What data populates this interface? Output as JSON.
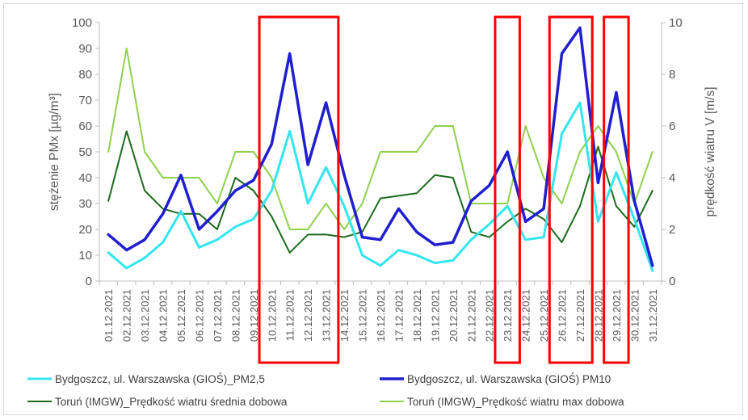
{
  "chart_data": {
    "type": "line",
    "x": [
      "01.12.2021",
      "02.12.2021",
      "03.12.2021",
      "04.12.2021",
      "05.12.2021",
      "06.12.2021",
      "07.12.2021",
      "08.12.2021",
      "09.12.2021",
      "10.12.2021",
      "11.12.2021",
      "12.12.2021",
      "13.12.2021",
      "14.12.2021",
      "15.12.2021",
      "16.12.2021",
      "17.12.2021",
      "18.12.2021",
      "19.12.2021",
      "20.12.2021",
      "21.12.2021",
      "22.12.2021",
      "23.12.2021",
      "24.12.2021",
      "25.12.2021",
      "26.12.2021",
      "27.12.2021",
      "28.12.2021",
      "29.12.2021",
      "30.12.2021",
      "31.12.2021"
    ],
    "y_left": {
      "label": "stężenie PMx [µg/m³]",
      "range": [
        0,
        100
      ],
      "ticks": [
        0,
        10,
        20,
        30,
        40,
        50,
        60,
        70,
        80,
        90,
        100
      ]
    },
    "y_right": {
      "label": "prędkość wiatru V [m/s]",
      "range": [
        0,
        10
      ],
      "ticks": [
        0,
        2,
        4,
        6,
        8,
        10
      ]
    },
    "series": [
      {
        "name": "Bydgoszcz, ul. Warszawska (GIOŚ)_PM2,5",
        "axis": "left",
        "color": "#33e6ee",
        "width": 3,
        "values": [
          11,
          5,
          9,
          15,
          27,
          13,
          16,
          21,
          24,
          35,
          58,
          30,
          44,
          29,
          10,
          6,
          12,
          10,
          7,
          8,
          16,
          22,
          29,
          16,
          17,
          57,
          69,
          23,
          42,
          24,
          4
        ]
      },
      {
        "name": "Bydgoszcz, ul. Warszawska (GIOŚ) PM10",
        "axis": "left",
        "color": "#1f1fd0",
        "width": 3.5,
        "values": [
          18,
          12,
          16,
          26,
          41,
          20,
          27,
          35,
          39,
          53,
          88,
          45,
          69,
          41,
          17,
          16,
          28,
          19,
          14,
          15,
          31,
          37,
          50,
          23,
          28,
          88,
          98,
          38,
          73,
          31,
          6
        ]
      },
      {
        "name": "Toruń (IMGW)_Prędkość wiatru średnia dobowa",
        "axis": "right",
        "color": "#1e6b1e",
        "width": 2,
        "values": [
          3.1,
          5.8,
          3.5,
          2.8,
          2.6,
          2.6,
          2.0,
          4.0,
          3.5,
          2.5,
          1.1,
          1.8,
          1.8,
          1.7,
          1.9,
          3.2,
          3.3,
          3.4,
          4.1,
          4.0,
          1.9,
          1.7,
          2.3,
          2.8,
          2.4,
          1.5,
          2.9,
          5.2,
          2.9,
          2.1,
          3.5
        ]
      },
      {
        "name": "Toruń (IMGW)_Prędkość wiatru max dobowa",
        "axis": "right",
        "color": "#8fd14f",
        "width": 2,
        "values": [
          5,
          9,
          5,
          4,
          4,
          4,
          3,
          5,
          5,
          4,
          2,
          2,
          3,
          2,
          3,
          5,
          5,
          5,
          6,
          6,
          3,
          3,
          3,
          6,
          4,
          3,
          5,
          6,
          5,
          3,
          5
        ]
      }
    ],
    "highlight_boxes": [
      {
        "from": "10.12.2021",
        "to": "13.12.2021"
      },
      {
        "from": "23.12.2021",
        "to": "23.12.2021"
      },
      {
        "from": "26.12.2021",
        "to": "27.12.2021"
      },
      {
        "from": "29.12.2021",
        "to": "29.12.2021"
      }
    ],
    "highlight_color": "#ff0000",
    "grid": false,
    "legend_position": "bottom"
  }
}
